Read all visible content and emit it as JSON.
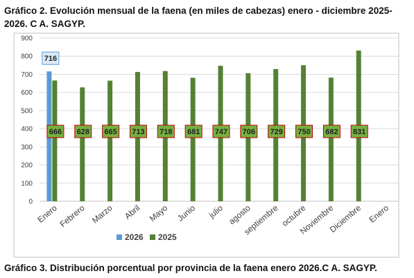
{
  "heading": "Gráfico 2. Evolución mensual de la faena (en miles de cabezas) enero - diciembre 2025-2026. C A. SAGYP.",
  "footer_heading": "Gráfico 3. Distribución porcentual por provincia de la faena enero 2026.C A. SAGYP.",
  "chart_data": {
    "type": "bar",
    "title": "",
    "xlabel": "",
    "ylabel": "",
    "ylim": [
      0,
      900
    ],
    "yticks": [
      0,
      100,
      200,
      300,
      400,
      500,
      600,
      700,
      800,
      900
    ],
    "grid": true,
    "legend_position": "bottom",
    "categories": [
      "Enero",
      "Febrero",
      "Marzo",
      "Abril",
      "Mayo",
      "Junio",
      "julio",
      "agosto",
      "septiembre",
      "octubre",
      "Noviembre",
      "Diciembre",
      "Enero"
    ],
    "series": [
      {
        "name": "2026",
        "color": "#5b9bd5",
        "values": [
          716,
          null,
          null,
          null,
          null,
          null,
          null,
          null,
          null,
          null,
          null,
          null,
          null
        ]
      },
      {
        "name": "2025",
        "color": "#548235",
        "values": [
          666,
          628,
          665,
          713,
          718,
          681,
          747,
          706,
          729,
          750,
          682,
          831,
          null
        ]
      }
    ],
    "data_labels": {
      "2026": [
        "716"
      ],
      "2025": [
        "666",
        "628",
        "665",
        "713",
        "718",
        "681",
        "747",
        "706",
        "729",
        "750",
        "682",
        "831"
      ]
    },
    "colors": {
      "label_2026_bg": "#dbe9f6",
      "label_2026_border": "#5b9bd5",
      "label_2025_bg": "#76b041",
      "label_2025_border": "#c00000",
      "plot_border": "#bfbfbf",
      "grid": "#d9d9d9"
    }
  }
}
